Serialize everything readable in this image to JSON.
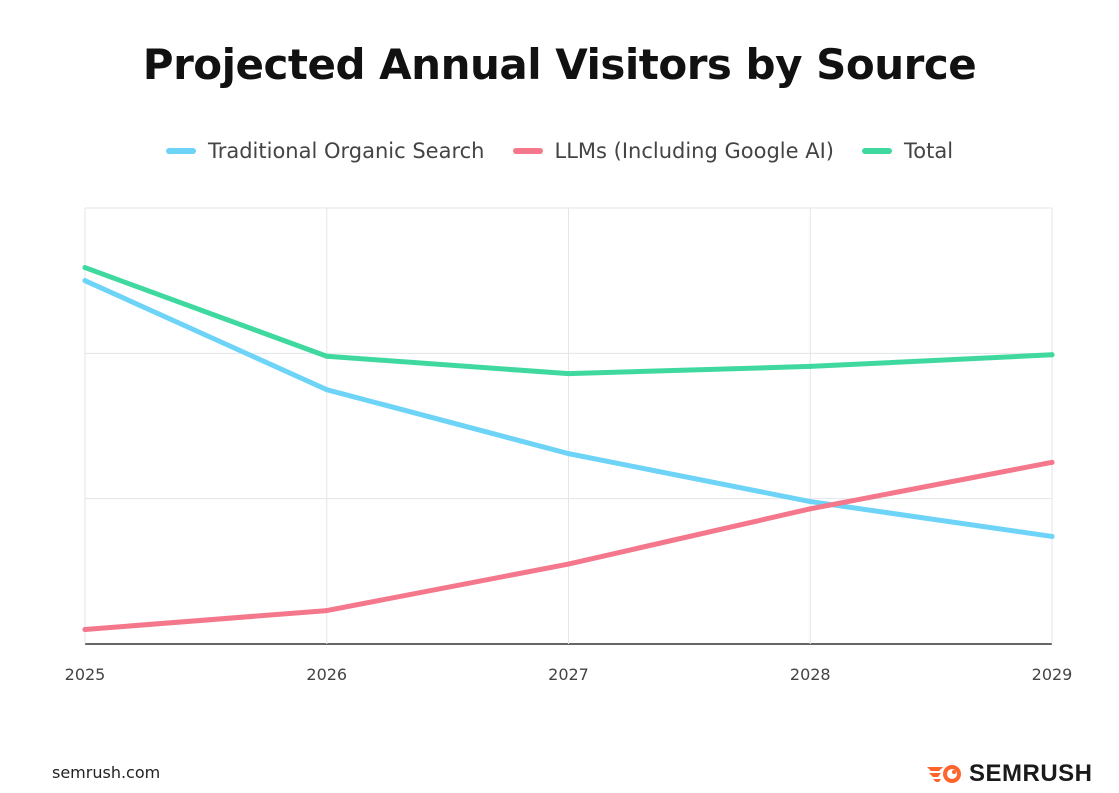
{
  "chart_data": {
    "type": "line",
    "title": "Projected Annual Visitors by Source",
    "x": [
      "2025",
      "2026",
      "2027",
      "2028",
      "2029"
    ],
    "xlabel": "",
    "ylabel": "",
    "y_tick_labels_shown": false,
    "ylim": [
      0,
      3
    ],
    "grid": "on",
    "legend_placement": "top",
    "series": [
      {
        "name": "Traditional Organic Search",
        "color": "#6dd3f7",
        "values": [
          2.5,
          1.75,
          1.31,
          0.98,
          0.74
        ]
      },
      {
        "name": "LLMs (Including Google AI)",
        "color": "#f4778c",
        "values": [
          0.1,
          0.23,
          0.55,
          0.93,
          1.25
        ]
      },
      {
        "name": "Total",
        "color": "#3fd9a0",
        "values": [
          2.59,
          1.98,
          1.86,
          1.91,
          1.99
        ]
      }
    ]
  },
  "footer": {
    "source": "semrush.com",
    "logo_text": "SEMRUSH",
    "logo_color": "#ff642d"
  }
}
